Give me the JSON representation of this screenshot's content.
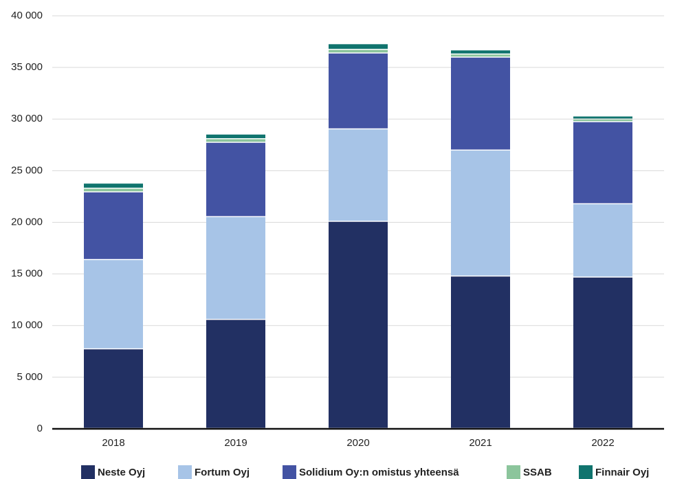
{
  "chart_data": {
    "type": "bar",
    "stacked": true,
    "categories": [
      "2018",
      "2019",
      "2020",
      "2021",
      "2022"
    ],
    "ylim": [
      0,
      40000
    ],
    "yticks": [
      0,
      5000,
      10000,
      15000,
      20000,
      25000,
      30000,
      35000,
      40000
    ],
    "ytick_labels": [
      "0",
      "5 000",
      "10 000",
      "15 000",
      "20 000",
      "25 000",
      "30 000",
      "35 000",
      "40 000"
    ],
    "grid": true,
    "legend_position": "bottom",
    "series": [
      {
        "name": "Neste Oyj",
        "color": "#223063",
        "values": [
          7700,
          10550,
          20050,
          14750,
          14650
        ]
      },
      {
        "name": "Fortum Oyj",
        "color": "#a7c4e7",
        "values": [
          8650,
          9950,
          8950,
          12200,
          7100
        ]
      },
      {
        "name": "Solidium Oy:n omistus yhteensä",
        "color": "#4353a3",
        "values": [
          6550,
          7200,
          7350,
          9000,
          7950
        ]
      },
      {
        "name": "SSAB",
        "color": "#8cc59c",
        "values": [
          350,
          350,
          350,
          300,
          250
        ]
      },
      {
        "name": "Finnair Oyj",
        "color": "#10746e",
        "values": [
          500,
          450,
          550,
          400,
          300
        ]
      }
    ]
  }
}
